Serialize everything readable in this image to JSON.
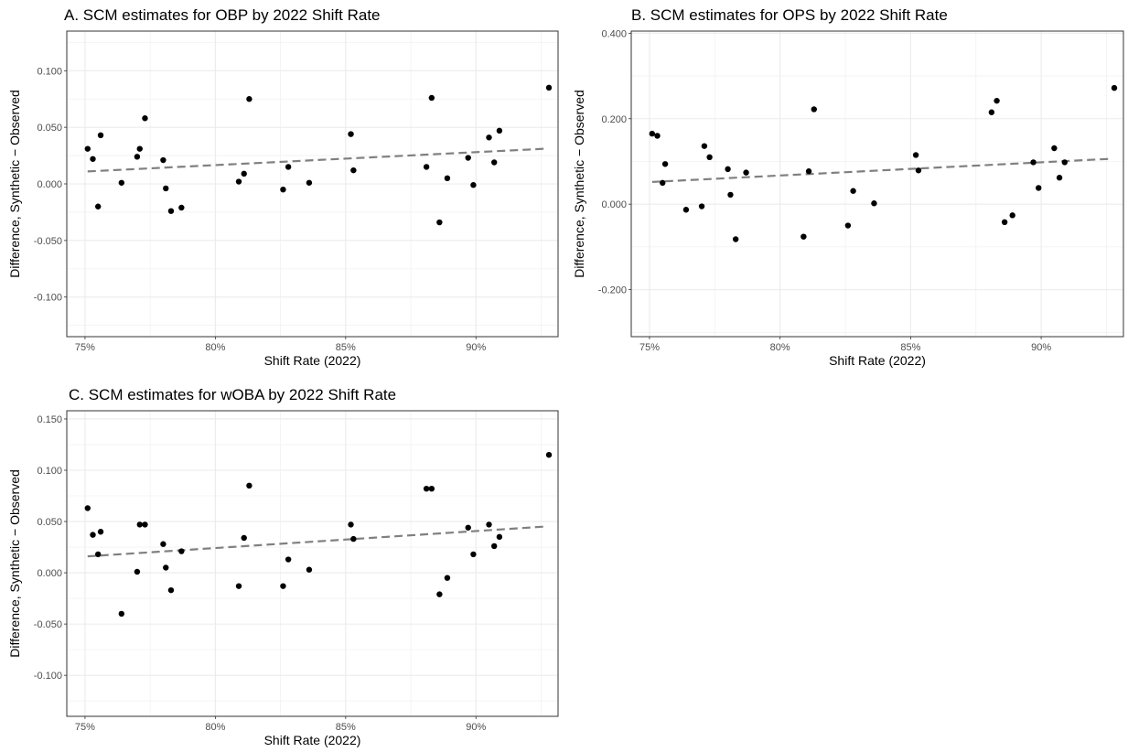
{
  "chart_data": [
    {
      "type": "scatter",
      "title": "A. SCM estimates for OBP by 2022 Shift Rate",
      "xlabel": "Shift Rate (2022)",
      "ylabel": "Difference, Synthetic − Observed",
      "xlim": [
        0.743,
        0.9315
      ],
      "ylim": [
        -0.135,
        0.135
      ],
      "x_ticks": [
        0.75,
        0.8,
        0.85,
        0.9
      ],
      "x_tick_labels": [
        "75%",
        "80%",
        "85%",
        "90%"
      ],
      "y_ticks": [
        0.1,
        0.05,
        0.0,
        -0.05,
        -0.1
      ],
      "y_tick_labels": [
        "0.100",
        "0.050",
        "0.000",
        "-0.050",
        "-0.100"
      ],
      "grid": true,
      "points": [
        [
          0.751,
          0.031
        ],
        [
          0.753,
          0.022
        ],
        [
          0.756,
          0.043
        ],
        [
          0.755,
          -0.02
        ],
        [
          0.764,
          0.001
        ],
        [
          0.77,
          0.024
        ],
        [
          0.771,
          0.031
        ],
        [
          0.773,
          0.058
        ],
        [
          0.78,
          0.021
        ],
        [
          0.781,
          -0.004
        ],
        [
          0.783,
          -0.024
        ],
        [
          0.787,
          -0.021
        ],
        [
          0.809,
          0.002
        ],
        [
          0.811,
          0.009
        ],
        [
          0.813,
          0.075
        ],
        [
          0.826,
          -0.005
        ],
        [
          0.828,
          0.015
        ],
        [
          0.836,
          0.001
        ],
        [
          0.852,
          0.044
        ],
        [
          0.853,
          0.012
        ],
        [
          0.881,
          0.015
        ],
        [
          0.883,
          0.076
        ],
        [
          0.886,
          -0.034
        ],
        [
          0.889,
          0.005
        ],
        [
          0.897,
          0.023
        ],
        [
          0.899,
          -0.001
        ],
        [
          0.905,
          0.041
        ],
        [
          0.907,
          0.019
        ],
        [
          0.909,
          0.047
        ],
        [
          0.928,
          0.085
        ]
      ],
      "trend_line": {
        "x": [
          0.751,
          0.926
        ],
        "y": [
          0.011,
          0.031
        ],
        "style": "dashed",
        "color": "#808080"
      },
      "point_color": "#000000"
    },
    {
      "type": "scatter",
      "title": "B. SCM estimates for OPS by 2022 Shift Rate",
      "xlabel": "Shift Rate (2022)",
      "ylabel": "Difference, Synthetic − Observed",
      "xlim": [
        0.743,
        0.9315
      ],
      "ylim": [
        -0.31,
        0.405
      ],
      "x_ticks": [
        0.75,
        0.8,
        0.85,
        0.9
      ],
      "x_tick_labels": [
        "75%",
        "80%",
        "85%",
        "90%"
      ],
      "y_ticks": [
        0.4,
        0.2,
        0.0,
        -0.2
      ],
      "y_tick_labels": [
        "0.400",
        "0.200",
        "0.000",
        "-0.200"
      ],
      "grid": true,
      "points": [
        [
          0.751,
          0.165
        ],
        [
          0.753,
          0.16
        ],
        [
          0.756,
          0.094
        ],
        [
          0.755,
          0.05
        ],
        [
          0.764,
          -0.013
        ],
        [
          0.77,
          -0.005
        ],
        [
          0.771,
          0.136
        ],
        [
          0.773,
          0.11
        ],
        [
          0.78,
          0.082
        ],
        [
          0.781,
          0.022
        ],
        [
          0.783,
          -0.082
        ],
        [
          0.787,
          0.074
        ],
        [
          0.809,
          -0.076
        ],
        [
          0.811,
          0.077
        ],
        [
          0.813,
          0.222
        ],
        [
          0.826,
          -0.05
        ],
        [
          0.828,
          0.031
        ],
        [
          0.836,
          0.002
        ],
        [
          0.852,
          0.115
        ],
        [
          0.853,
          0.079
        ],
        [
          0.881,
          0.215
        ],
        [
          0.883,
          0.242
        ],
        [
          0.886,
          -0.042
        ],
        [
          0.889,
          -0.026
        ],
        [
          0.897,
          0.098
        ],
        [
          0.899,
          0.038
        ],
        [
          0.905,
          0.131
        ],
        [
          0.907,
          0.062
        ],
        [
          0.909,
          0.098
        ],
        [
          0.928,
          0.272
        ]
      ],
      "trend_line": {
        "x": [
          0.751,
          0.926
        ],
        "y": [
          0.052,
          0.106
        ],
        "style": "dashed",
        "color": "#808080"
      },
      "point_color": "#000000"
    },
    {
      "type": "scatter",
      "title": "C. SCM estimates for wOBA by 2022 Shift Rate",
      "xlabel": "Shift Rate (2022)",
      "ylabel": "Difference, Synthetic − Observed",
      "xlim": [
        0.743,
        0.9315
      ],
      "ylim": [
        -0.14,
        0.158
      ],
      "x_ticks": [
        0.75,
        0.8,
        0.85,
        0.9
      ],
      "x_tick_labels": [
        "75%",
        "80%",
        "85%",
        "90%"
      ],
      "y_ticks": [
        0.15,
        0.1,
        0.05,
        0.0,
        -0.05,
        -0.1
      ],
      "y_tick_labels": [
        "0.150",
        "0.100",
        "0.050",
        "0.000",
        "-0.050",
        "-0.100"
      ],
      "grid": true,
      "points": [
        [
          0.751,
          0.063
        ],
        [
          0.753,
          0.037
        ],
        [
          0.756,
          0.04
        ],
        [
          0.755,
          0.018
        ],
        [
          0.764,
          -0.04
        ],
        [
          0.77,
          0.001
        ],
        [
          0.771,
          0.047
        ],
        [
          0.773,
          0.047
        ],
        [
          0.78,
          0.028
        ],
        [
          0.781,
          0.005
        ],
        [
          0.783,
          -0.017
        ],
        [
          0.787,
          0.021
        ],
        [
          0.809,
          -0.013
        ],
        [
          0.811,
          0.034
        ],
        [
          0.813,
          0.085
        ],
        [
          0.826,
          -0.013
        ],
        [
          0.828,
          0.013
        ],
        [
          0.836,
          0.003
        ],
        [
          0.852,
          0.047
        ],
        [
          0.853,
          0.033
        ],
        [
          0.881,
          0.082
        ],
        [
          0.883,
          0.082
        ],
        [
          0.886,
          -0.021
        ],
        [
          0.889,
          -0.005
        ],
        [
          0.897,
          0.044
        ],
        [
          0.899,
          0.018
        ],
        [
          0.905,
          0.047
        ],
        [
          0.907,
          0.026
        ],
        [
          0.909,
          0.035
        ],
        [
          0.928,
          0.115
        ]
      ],
      "trend_line": {
        "x": [
          0.751,
          0.926
        ],
        "y": [
          0.016,
          0.045
        ],
        "style": "dashed",
        "color": "#808080"
      },
      "point_color": "#000000"
    }
  ]
}
